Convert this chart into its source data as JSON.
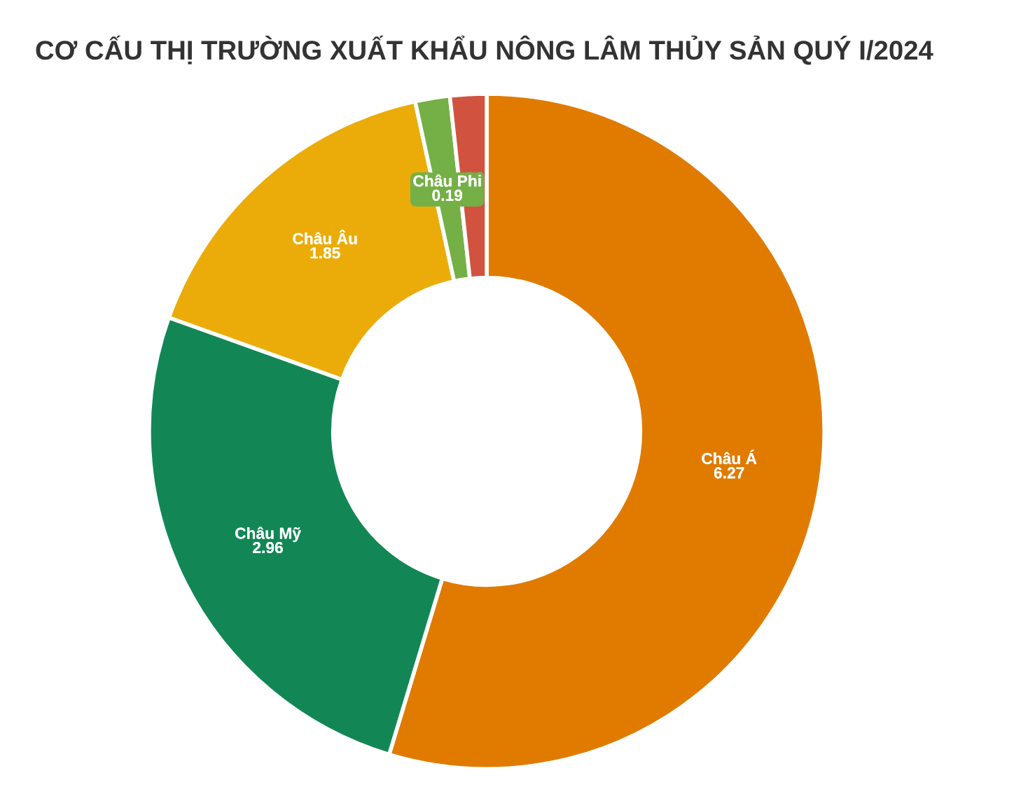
{
  "chart_data": {
    "type": "donut",
    "title": "CƠ CẤU THỊ TRƯỜNG XUẤT KHẨU NÔNG LÂM THỦY SẢN QUÝ I/2024",
    "categories": [
      "Châu Á",
      "Châu Mỹ",
      "Châu Âu",
      "Châu Phi",
      null
    ],
    "values": [
      6.27,
      2.96,
      1.85,
      0.19,
      0.2
    ],
    "value_labels": [
      "6.27",
      "2.96",
      "1.85",
      "0.19",
      null
    ],
    "colors": [
      "#e07b00",
      "#128755",
      "#ebac0a",
      "#74b046",
      "#d1533f"
    ]
  }
}
